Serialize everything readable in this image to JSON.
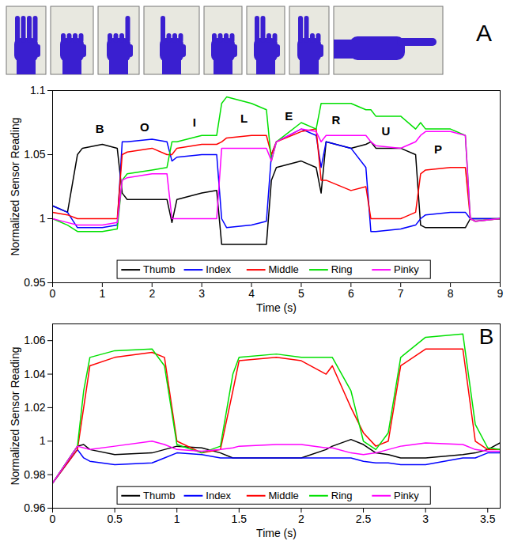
{
  "chart_data": [
    {
      "type": "line",
      "panel": "A",
      "x_label": "Time (s)",
      "y_label": "Normalized Sensor Reading",
      "xlim": [
        0,
        9
      ],
      "ylim": [
        0.95,
        1.1
      ],
      "xticks": [
        0,
        1,
        2,
        3,
        4,
        5,
        6,
        7,
        8,
        9
      ],
      "yticks": [
        0.95,
        1,
        1.05,
        1.1
      ],
      "legend": "bottom",
      "grid": false,
      "x": [
        0,
        0.3,
        0.5,
        0.6,
        1.0,
        1.3,
        1.4,
        1.5,
        2.0,
        2.3,
        2.4,
        2.5,
        3.0,
        3.3,
        3.4,
        3.5,
        4.0,
        4.3,
        4.4,
        4.5,
        5.0,
        5.3,
        5.4,
        5.5,
        6.0,
        6.3,
        6.4,
        6.5,
        7.0,
        7.3,
        7.4,
        7.5,
        8.0,
        8.3,
        8.4,
        8.5,
        9.0
      ],
      "series": [
        {
          "name": "Thumb",
          "color": "#000000",
          "values": [
            1.01,
            1.005,
            1.05,
            1.055,
            1.058,
            1.055,
            1.02,
            1.015,
            1.015,
            1.015,
            0.997,
            1.015,
            1.02,
            1.022,
            0.98,
            0.98,
            0.98,
            0.98,
            1.03,
            1.04,
            1.045,
            1.04,
            1.02,
            1.06,
            1.055,
            1.058,
            1.06,
            1.055,
            1.055,
            1.05,
            0.995,
            0.993,
            0.993,
            0.993,
            1.0,
            1.0,
            1.0
          ]
        },
        {
          "name": "Index",
          "color": "#0000ff",
          "values": [
            1.01,
            1.005,
            0.993,
            0.993,
            0.993,
            0.995,
            1.06,
            1.06,
            1.062,
            1.06,
            1.045,
            1.048,
            1.05,
            1.05,
            1.0,
            0.993,
            0.995,
            0.998,
            1.05,
            1.06,
            1.07,
            1.065,
            1.04,
            1.06,
            1.055,
            1.04,
            0.99,
            0.99,
            0.992,
            0.995,
            1.0,
            1.003,
            1.005,
            1.005,
            1.0,
            1.0,
            1.0
          ]
        },
        {
          "name": "Middle",
          "color": "#ff0000",
          "values": [
            1.005,
            1.003,
            1.0,
            1.0,
            1.0,
            1.0,
            1.05,
            1.052,
            1.055,
            1.05,
            1.05,
            1.055,
            1.058,
            1.058,
            1.06,
            1.063,
            1.065,
            1.065,
            1.05,
            1.06,
            1.068,
            1.07,
            1.03,
            1.03,
            1.022,
            1.025,
            1.0,
            1.0,
            1.0,
            1.005,
            1.035,
            1.038,
            1.04,
            1.04,
            1.0,
            0.998,
            1.0
          ]
        },
        {
          "name": "Ring",
          "color": "#00e000",
          "values": [
            1.0,
            0.995,
            0.99,
            0.99,
            0.99,
            0.992,
            1.03,
            1.035,
            1.038,
            1.04,
            1.06,
            1.06,
            1.065,
            1.065,
            1.09,
            1.095,
            1.09,
            1.085,
            1.045,
            1.06,
            1.075,
            1.07,
            1.09,
            1.09,
            1.09,
            1.085,
            1.085,
            1.08,
            1.08,
            1.07,
            1.075,
            1.07,
            1.07,
            1.065,
            1.0,
            0.998,
            1.0
          ]
        },
        {
          "name": "Pinky",
          "color": "#ff00ff",
          "values": [
            1.0,
            0.997,
            0.995,
            0.995,
            0.995,
            0.997,
            1.03,
            1.032,
            1.035,
            1.035,
            1.0,
            1.0,
            1.0,
            1.0,
            1.055,
            1.055,
            1.055,
            1.055,
            1.045,
            1.06,
            1.07,
            1.068,
            1.06,
            1.065,
            1.065,
            1.065,
            1.06,
            1.057,
            1.055,
            1.06,
            1.065,
            1.068,
            1.068,
            1.065,
            1.0,
            0.998,
            1.0
          ]
        }
      ],
      "annotations": [
        {
          "text": "B",
          "x": 0.95,
          "y": 1.07
        },
        {
          "text": "O",
          "x": 1.85,
          "y": 1.071
        },
        {
          "text": "I",
          "x": 2.85,
          "y": 1.075
        },
        {
          "text": "L",
          "x": 3.85,
          "y": 1.078
        },
        {
          "text": "E",
          "x": 4.75,
          "y": 1.08
        },
        {
          "text": "R",
          "x": 5.7,
          "y": 1.077
        },
        {
          "text": "U",
          "x": 6.7,
          "y": 1.068
        },
        {
          "text": "P",
          "x": 7.75,
          "y": 1.054
        }
      ]
    },
    {
      "type": "line",
      "panel": "B",
      "x_label": "Time (s)",
      "y_label": "Normalized Sensor Reading",
      "xlim": [
        0,
        3.6
      ],
      "ylim": [
        0.96,
        1.07
      ],
      "xticks": [
        0,
        0.5,
        1,
        1.5,
        2,
        2.5,
        3,
        3.5
      ],
      "yticks": [
        0.96,
        0.98,
        1,
        1.02,
        1.04,
        1.06
      ],
      "legend": "bottom",
      "grid": false,
      "x": [
        0,
        0.2,
        0.25,
        0.3,
        0.5,
        0.8,
        0.9,
        1.0,
        1.2,
        1.35,
        1.45,
        1.5,
        1.8,
        2.0,
        2.2,
        2.25,
        2.4,
        2.5,
        2.6,
        2.7,
        2.8,
        3.0,
        3.3,
        3.4,
        3.5,
        3.6
      ],
      "series": [
        {
          "name": "Thumb",
          "color": "#000000",
          "values": [
            0.975,
            0.997,
            0.998,
            0.995,
            0.992,
            0.993,
            0.995,
            0.997,
            0.996,
            0.993,
            0.99,
            0.99,
            0.99,
            0.99,
            0.995,
            0.997,
            1.001,
            0.998,
            0.993,
            0.992,
            0.99,
            0.99,
            0.992,
            0.993,
            0.995,
            0.999
          ]
        },
        {
          "name": "Index",
          "color": "#0000ff",
          "values": [
            0.975,
            0.995,
            0.99,
            0.988,
            0.986,
            0.987,
            0.99,
            0.993,
            0.992,
            0.99,
            0.99,
            0.99,
            0.99,
            0.99,
            0.99,
            0.99,
            0.99,
            0.988,
            0.987,
            0.987,
            0.986,
            0.986,
            0.99,
            0.99,
            0.993,
            0.993
          ]
        },
        {
          "name": "Middle",
          "color": "#ff0000",
          "values": [
            0.975,
            0.995,
            1.02,
            1.045,
            1.05,
            1.053,
            1.05,
            1.0,
            0.993,
            0.995,
            1.03,
            1.048,
            1.05,
            1.048,
            1.04,
            1.045,
            1.02,
            1.005,
            0.997,
            1.0,
            1.045,
            1.055,
            1.055,
            1.0,
            0.995,
            0.995
          ]
        },
        {
          "name": "Ring",
          "color": "#00e000",
          "values": [
            0.975,
            0.997,
            1.03,
            1.05,
            1.054,
            1.055,
            1.045,
            0.998,
            0.993,
            0.997,
            1.04,
            1.05,
            1.052,
            1.05,
            1.05,
            1.05,
            1.03,
            1.0,
            0.995,
            1.005,
            1.05,
            1.062,
            1.064,
            1.01,
            0.996,
            0.995
          ]
        },
        {
          "name": "Pinky",
          "color": "#ff00ff",
          "values": [
            0.975,
            0.997,
            0.996,
            0.995,
            0.997,
            1.0,
            0.998,
            0.995,
            0.994,
            0.995,
            0.996,
            0.997,
            0.998,
            0.998,
            0.996,
            0.996,
            0.993,
            0.992,
            0.993,
            0.995,
            0.997,
            0.999,
            0.998,
            0.995,
            0.994,
            0.994
          ]
        }
      ]
    }
  ]
}
